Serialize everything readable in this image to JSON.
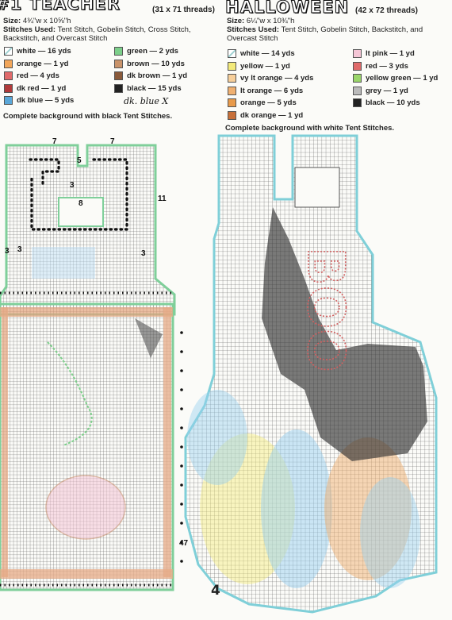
{
  "left": {
    "title": "#1 TEACHER",
    "threads": "(31 x 71 threads)",
    "size_label": "Size:",
    "size_value": "4¾\"w x 10⅝\"h",
    "stitches_label": "Stitches Used:",
    "stitches_value": "Tent Stitch, Gobelin Stitch, Cross Stitch, Backstitch, and Overcast Stitch",
    "legend": [
      {
        "label": "white — 16 yds",
        "color": "#ffffff"
      },
      {
        "label": "orange — 1 yd",
        "color": "#f2a65a"
      },
      {
        "label": "red — 4 yds",
        "color": "#e06a6a"
      },
      {
        "label": "dk red — 1 yd",
        "color": "#b03a3a"
      },
      {
        "label": "dk blue — 5 yds",
        "color": "#5aa7d8"
      },
      {
        "label": "green — 2 yds",
        "color": "#7ccf8a"
      },
      {
        "label": "brown — 10 yds",
        "color": "#c9936a"
      },
      {
        "label": "dk brown — 1 yd",
        "color": "#8a5a3a"
      },
      {
        "label": "black — 15 yds",
        "color": "#222222"
      }
    ],
    "handwritten_note": "dk. blue X",
    "instruction": "Complete background with black Tent Stitches.",
    "chart_marks": [
      "7",
      "5",
      "7",
      "3",
      "3",
      "8",
      "11",
      "3",
      "3",
      "47"
    ]
  },
  "right": {
    "title": "HALLOWEEN",
    "threads": "(42 x 72 threads)",
    "size_label": "Size:",
    "size_value": "6¼\"w x 10¾\"h",
    "stitches_label": "Stitches Used:",
    "stitches_value": "Tent Stitch, Gobelin Stitch, Backstitch, and Overcast Stitch",
    "legend": [
      {
        "label": "white — 14 yds",
        "color": "#ffffff"
      },
      {
        "label": "yellow — 1 yd",
        "color": "#f3ea7a"
      },
      {
        "label": "vy lt orange — 4 yds",
        "color": "#f7cf9a"
      },
      {
        "label": "lt orange — 6 yds",
        "color": "#f0b070"
      },
      {
        "label": "orange — 5 yds",
        "color": "#e89a4a"
      },
      {
        "label": "dk orange — 1 yd",
        "color": "#c8703a"
      },
      {
        "label": "lt pink — 1 yd",
        "color": "#f5c6d6"
      },
      {
        "label": "red — 3 yds",
        "color": "#e06a6a"
      },
      {
        "label": "yellow green — 1 yd",
        "color": "#9ad66a"
      },
      {
        "label": "grey — 1 yd",
        "color": "#bbbbbb"
      },
      {
        "label": "black — 10 yds",
        "color": "#222222"
      }
    ],
    "instruction": "Complete background with white Tent Stitches.",
    "boo_text": "BOO"
  },
  "page_number": "4"
}
